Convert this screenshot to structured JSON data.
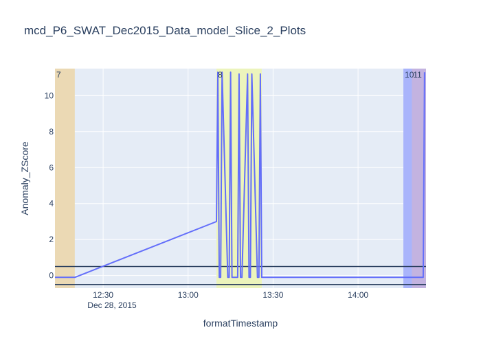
{
  "chart_data": {
    "type": "line",
    "title": "mcd_P6_SWAT_Dec2015_Data_model_Slice_2_Plots",
    "xlabel": "formatTimestamp",
    "ylabel": "Anomaly_ZScore",
    "date_label": "Dec 28, 2015",
    "x_range": [
      "2015-12-28 12:13",
      "2015-12-28 14:24"
    ],
    "y_range": [
      -0.7,
      11.5
    ],
    "x_ticks": [
      {
        "value": "2015-12-28 12:30",
        "label": "12:30"
      },
      {
        "value": "2015-12-28 13:00",
        "label": "13:00"
      },
      {
        "value": "2015-12-28 13:30",
        "label": "13:30"
      },
      {
        "value": "2015-12-28 14:00",
        "label": "14:00"
      }
    ],
    "y_ticks": [
      0,
      2,
      4,
      6,
      8,
      10
    ],
    "grid": true,
    "plot_background": "#E5ECF6",
    "series": [
      {
        "color": "#636EFA",
        "x": [
          "2015-12-28 12:13",
          "2015-12-28 12:20",
          "2015-12-28 13:10",
          "2015-12-28 13:10:30",
          "2015-12-28 13:11",
          "2015-12-28 13:11:30",
          "2015-12-28 13:12",
          "2015-12-28 13:14",
          "2015-12-28 13:14:30",
          "2015-12-28 13:15",
          "2015-12-28 13:15:30",
          "2015-12-28 13:17:30",
          "2015-12-28 13:18",
          "2015-12-28 13:18:30",
          "2015-12-28 13:19",
          "2015-12-28 13:21",
          "2015-12-28 13:21:30",
          "2015-12-28 13:22",
          "2015-12-28 13:22:30",
          "2015-12-28 13:24:30",
          "2015-12-28 13:25",
          "2015-12-28 13:25:30",
          "2015-12-28 13:26",
          "2015-12-28 14:23",
          "2015-12-28 14:23:30"
        ],
        "y": [
          -0.1,
          -0.1,
          3.0,
          11.3,
          -0.1,
          -0.1,
          11.3,
          -0.1,
          -0.1,
          11.3,
          -0.1,
          -0.1,
          11.2,
          -0.1,
          -0.1,
          11.2,
          -0.1,
          -0.1,
          11.2,
          -0.1,
          -0.1,
          11.2,
          -0.1,
          -0.1,
          11.3
        ]
      }
    ],
    "threshold_lines": [
      0.5,
      -0.5
    ],
    "threshold_color": "#2a3f5f",
    "bands": [
      {
        "label": "7",
        "x0": "2015-12-28 12:13",
        "x1": "2015-12-28 12:20",
        "color": "#EBD9B4"
      },
      {
        "label": "8",
        "x0": "2015-12-28 13:10",
        "x1": "2015-12-28 13:26",
        "color": "#ECF4BC"
      },
      {
        "label": "10",
        "x0": "2015-12-28 14:16",
        "x1": "2015-12-28 14:24",
        "color": "#A9B4FB"
      },
      {
        "label": "11",
        "x0": "2015-12-28 14:19",
        "x1": "2015-12-28 14:24",
        "color": "#C3B3E0"
      }
    ]
  }
}
